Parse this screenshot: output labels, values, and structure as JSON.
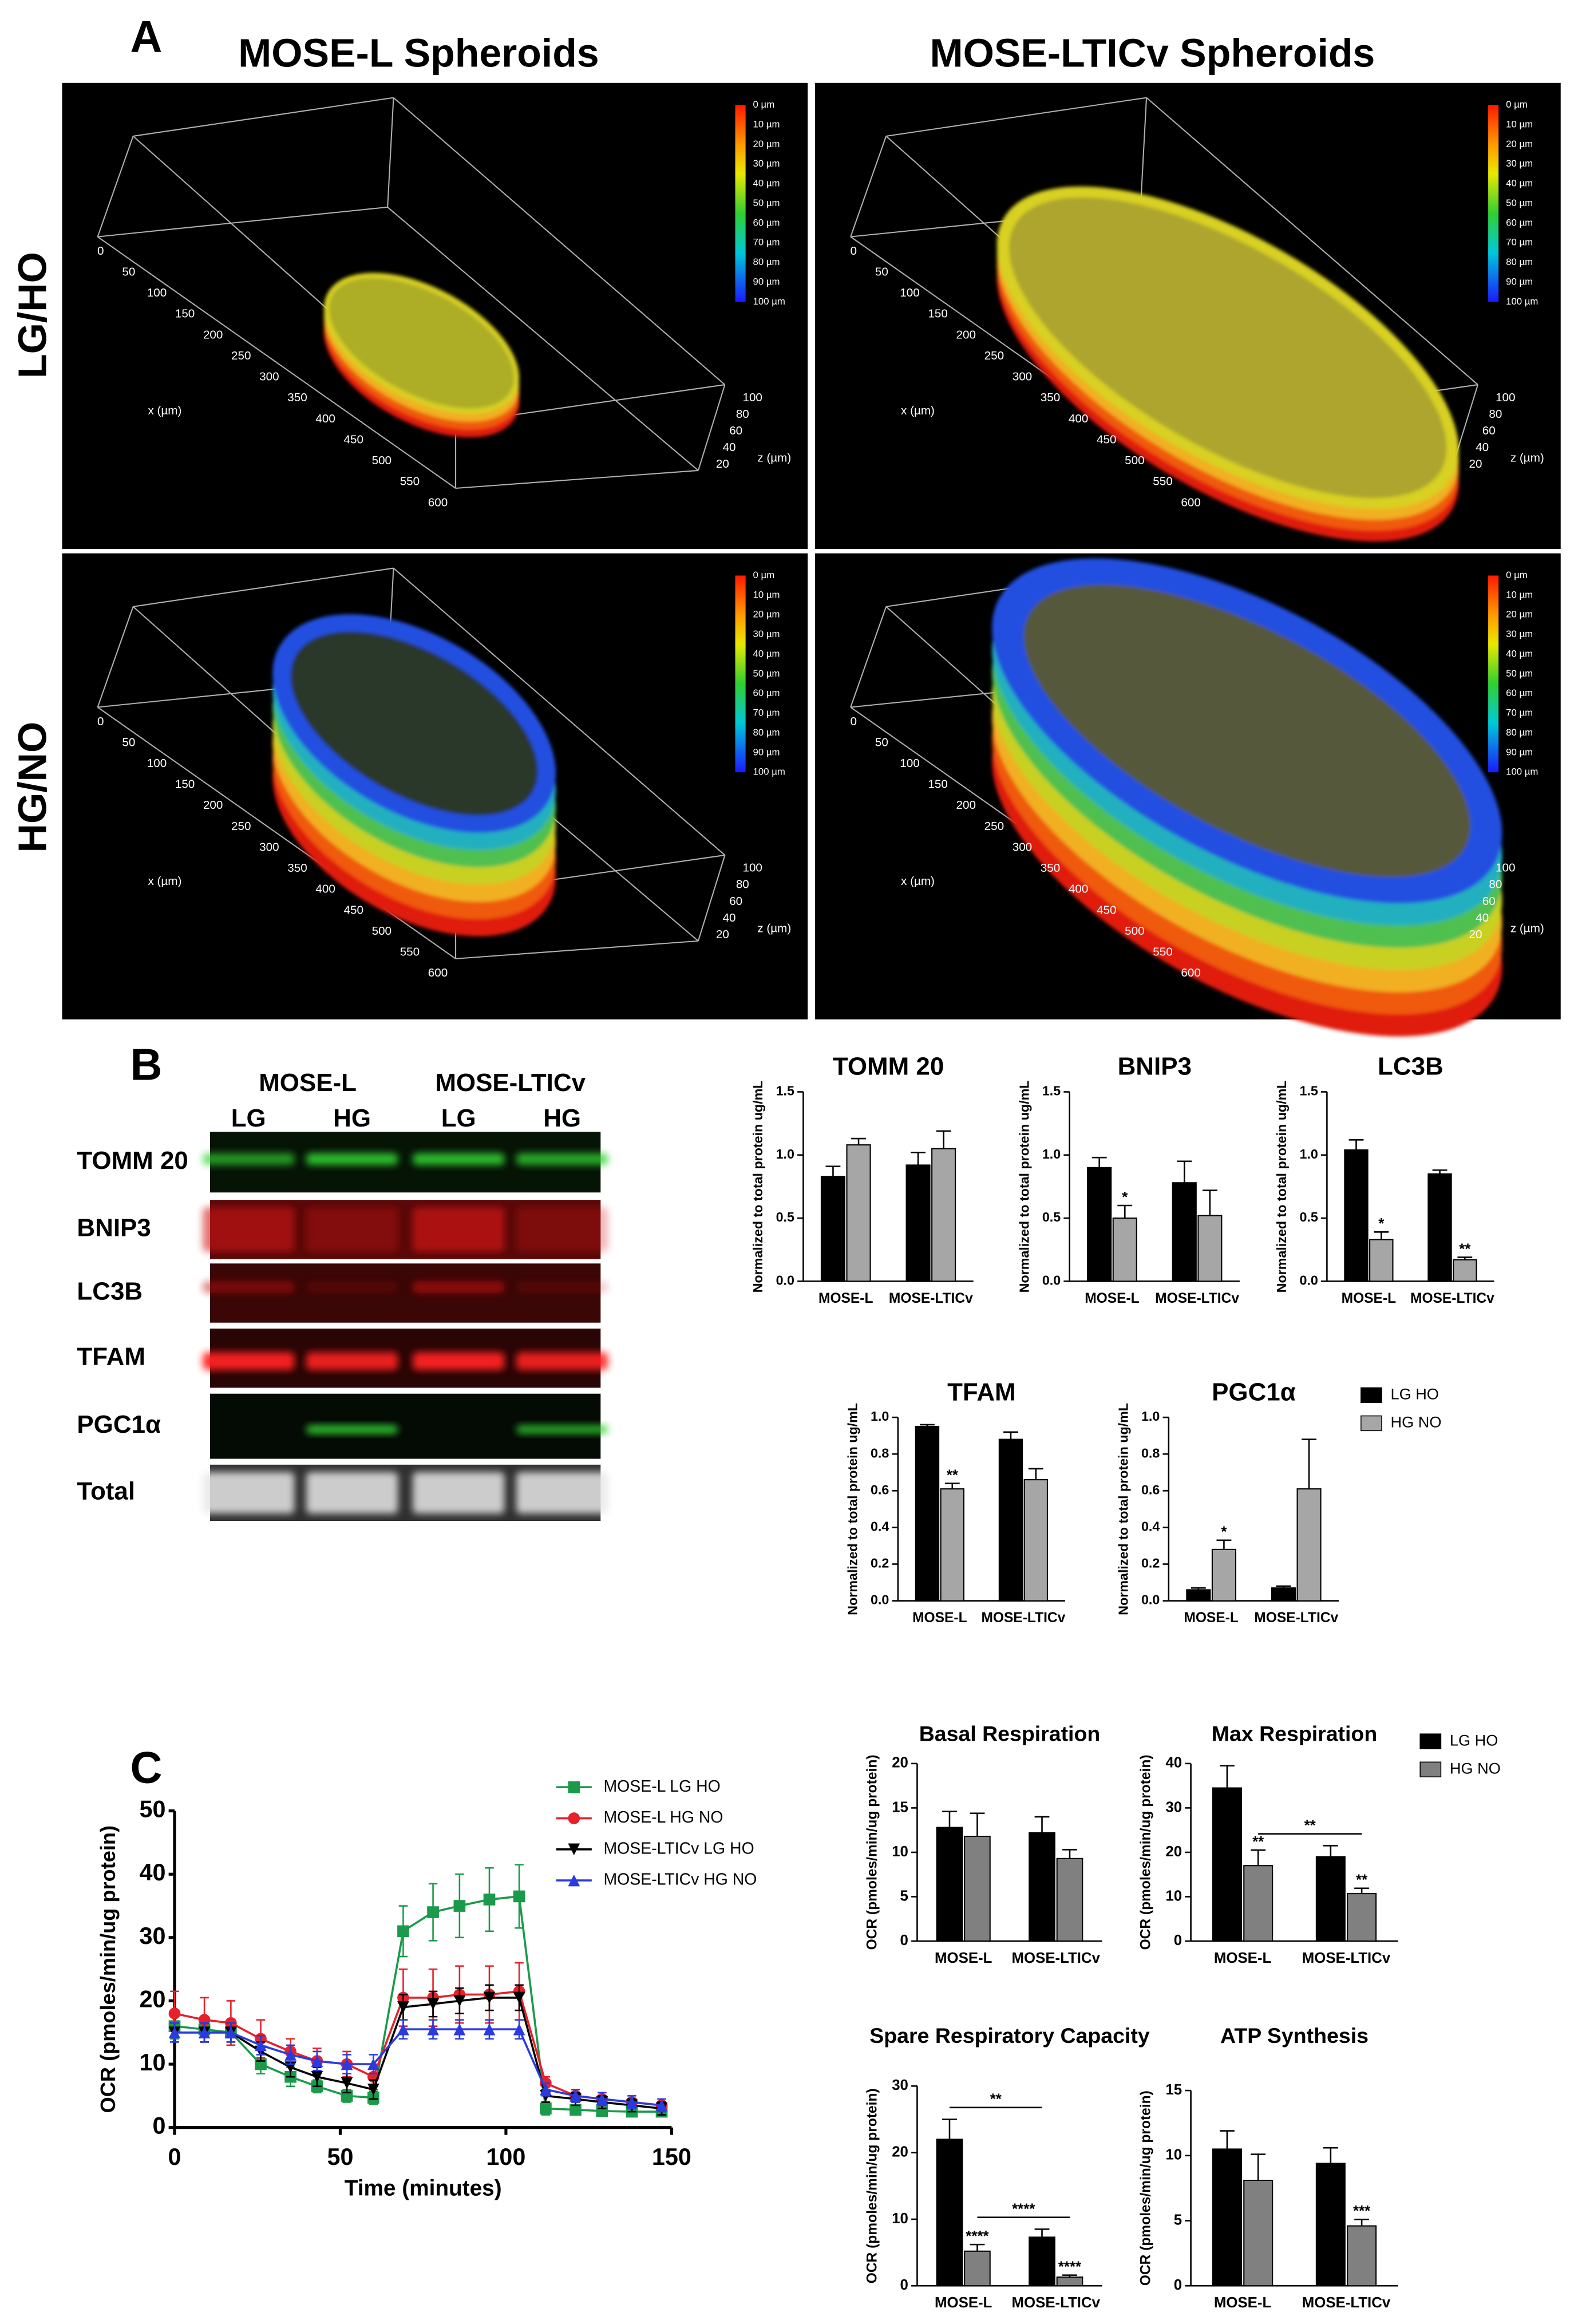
{
  "panel_labels": [
    "A",
    "B",
    "C"
  ],
  "spheroids": {
    "columns": [
      "MOSE-L Spheroids",
      "MOSE-LTICv Spheroids"
    ],
    "rows": [
      "LG/HO",
      "HG/NO"
    ],
    "depth_scale": [
      "0 µm",
      "10 µm",
      "20 µm",
      "30 µm",
      "40 µm",
      "50 µm",
      "60 µm",
      "70 µm",
      "80 µm",
      "90 µm",
      "100 µm"
    ],
    "x_label": "x (µm)",
    "x_ticks": [
      0,
      50,
      100,
      150,
      200,
      250,
      300,
      350,
      400,
      450,
      500,
      550,
      600
    ],
    "z_label": "z (µm)",
    "z_ticks": [
      100,
      80,
      60,
      40,
      20
    ]
  },
  "blot": {
    "groups": [
      "MOSE-L",
      "MOSE-LTICv"
    ],
    "lanes": [
      "LG",
      "HG",
      "LG",
      "HG"
    ],
    "proteins": [
      "TOMM 20",
      "BNIP3",
      "LC3B",
      "TFAM",
      "PGC1α",
      "Total"
    ]
  },
  "chart_data": [
    {
      "type": "bar",
      "title": "TOMM 20",
      "ylabel": "Normalized to total protein ug/mL",
      "categories": [
        "MOSE-L",
        "MOSE-LTICv"
      ],
      "ylim": [
        0,
        1.5
      ],
      "yticks": [
        {
          "value": 0,
          "label": "0.0"
        },
        {
          "value": 0.5,
          "label": "0.5"
        },
        {
          "value": 1,
          "label": "1.0"
        },
        {
          "value": 1.5,
          "label": "1.5"
        }
      ],
      "series": [
        {
          "color": "#000000",
          "values": [
            0.83,
            0.92
          ],
          "errors": [
            0.08,
            0.1
          ]
        },
        {
          "color": "#a6a6a6",
          "values": [
            1.08,
            1.05
          ],
          "errors": [
            0.05,
            0.14
          ]
        }
      ]
    },
    {
      "type": "bar",
      "title": "BNIP3",
      "ylabel": "Normalized to total protein ug/mL",
      "categories": [
        "MOSE-L",
        "MOSE-LTICv"
      ],
      "ylim": [
        0,
        1.5
      ],
      "yticks": [
        {
          "value": 0,
          "label": "0.0"
        },
        {
          "value": 0.5,
          "label": "0.5"
        },
        {
          "value": 1,
          "label": "1.0"
        },
        {
          "value": 1.5,
          "label": "1.5"
        }
      ],
      "series": [
        {
          "color": "#000000",
          "values": [
            0.9,
            0.78
          ],
          "errors": [
            0.08,
            0.17
          ]
        },
        {
          "color": "#a6a6a6",
          "values": [
            0.5,
            0.52
          ],
          "errors": [
            0.1,
            0.2
          ],
          "stars": [
            "*",
            null
          ]
        }
      ]
    },
    {
      "type": "bar",
      "title": "LC3B",
      "ylabel": "Normalized to total protein ug/mL",
      "categories": [
        "MOSE-L",
        "MOSE-LTICv"
      ],
      "ylim": [
        0,
        1.5
      ],
      "yticks": [
        {
          "value": 0,
          "label": "0.0"
        },
        {
          "value": 0.5,
          "label": "0.5"
        },
        {
          "value": 1,
          "label": "1.0"
        },
        {
          "value": 1.5,
          "label": "1.5"
        }
      ],
      "series": [
        {
          "color": "#000000",
          "values": [
            1.04,
            0.85
          ],
          "errors": [
            0.08,
            0.03
          ]
        },
        {
          "color": "#a6a6a6",
          "values": [
            0.33,
            0.17
          ],
          "errors": [
            0.06,
            0.02
          ],
          "stars": [
            "*",
            "**"
          ]
        }
      ]
    },
    {
      "type": "bar",
      "title": "TFAM",
      "ylabel": "Normalized to total protein ug/mL",
      "categories": [
        "MOSE-L",
        "MOSE-LTICv"
      ],
      "ylim": [
        0,
        1
      ],
      "yticks": [
        {
          "value": 0,
          "label": "0.0"
        },
        {
          "value": 0.2,
          "label": "0.2"
        },
        {
          "value": 0.4,
          "label": "0.4"
        },
        {
          "value": 0.6,
          "label": "0.6"
        },
        {
          "value": 0.8,
          "label": "0.8"
        },
        {
          "value": 1,
          "label": "1.0"
        }
      ],
      "series": [
        {
          "color": "#000000",
          "values": [
            0.95,
            0.88
          ],
          "errors": [
            0.01,
            0.04
          ]
        },
        {
          "color": "#a6a6a6",
          "values": [
            0.61,
            0.66
          ],
          "errors": [
            0.03,
            0.06
          ],
          "stars": [
            "**",
            null
          ]
        }
      ]
    },
    {
      "type": "bar",
      "title": "PGC1α",
      "ylabel": "Normalized to total protein ug/mL",
      "categories": [
        "MOSE-L",
        "MOSE-LTICv"
      ],
      "ylim": [
        0,
        1
      ],
      "yticks": [
        {
          "value": 0,
          "label": "0.0"
        },
        {
          "value": 0.2,
          "label": "0.2"
        },
        {
          "value": 0.4,
          "label": "0.4"
        },
        {
          "value": 0.6,
          "label": "0.6"
        },
        {
          "value": 0.8,
          "label": "0.8"
        },
        {
          "value": 1,
          "label": "1.0"
        }
      ],
      "legend": "right",
      "series": [
        {
          "name": "LG HO",
          "color": "#000000",
          "values": [
            0.06,
            0.07
          ],
          "errors": [
            0.01,
            0.01
          ]
        },
        {
          "name": "HG NO",
          "color": "#a6a6a6",
          "values": [
            0.28,
            0.61
          ],
          "errors": [
            0.05,
            0.27
          ],
          "stars": [
            "*",
            null
          ]
        }
      ]
    },
    {
      "type": "line",
      "xlabel": "Time (minutes)",
      "ylabel": "OCR (pmoles/min/ug protein)",
      "x": [
        0,
        9,
        17,
        26,
        35,
        43,
        52,
        60,
        69,
        78,
        86,
        95,
        104,
        112,
        121,
        129,
        138,
        147
      ],
      "xlim": [
        0,
        150
      ],
      "xticks": [
        0,
        50,
        100,
        150
      ],
      "ylim": [
        0,
        50
      ],
      "yticks": [
        0,
        10,
        20,
        30,
        40,
        50
      ],
      "legend": "top",
      "series": [
        {
          "name": "MOSE-L LG HO",
          "color": "#1a9a4a",
          "marker": "square",
          "values": [
            16,
            15.5,
            15,
            10,
            8,
            6.5,
            5,
            4.7,
            31,
            34,
            35,
            36,
            36.5,
            3,
            2.8,
            2.6,
            2.5,
            2.5
          ],
          "errors": [
            2,
            2,
            2,
            1.5,
            1.5,
            1,
            1,
            1,
            4,
            4.5,
            5,
            5,
            5,
            1,
            0.5,
            0.5,
            0.5,
            0.5
          ]
        },
        {
          "name": "MOSE-L HG NO",
          "color": "#e8202a",
          "marker": "circle",
          "values": [
            18,
            17,
            16.5,
            14,
            12,
            10.5,
            10,
            8,
            20.5,
            20.5,
            21,
            21,
            21.5,
            7,
            5,
            4.5,
            4,
            3.5
          ],
          "errors": [
            3.5,
            3.5,
            3.5,
            3,
            2,
            2,
            2,
            2,
            4.5,
            4.5,
            4.5,
            4.5,
            4.5,
            1,
            1,
            1,
            0.5,
            0.5
          ]
        },
        {
          "name": "MOSE-LTICv LG HO",
          "color": "#000000",
          "marker": "triangle-down",
          "values": [
            15,
            15,
            15,
            12,
            9.5,
            8,
            7,
            6,
            19,
            19.5,
            20,
            20.5,
            20.5,
            5,
            4.5,
            4,
            3.5,
            3
          ],
          "errors": [
            1.5,
            1.5,
            1.5,
            1.5,
            1.5,
            1.5,
            1.5,
            1.5,
            2,
            2,
            2,
            2,
            2,
            1,
            1,
            1,
            1,
            1
          ]
        },
        {
          "name": "MOSE-LTICv HG NO",
          "color": "#2a3ae0",
          "marker": "triangle-up",
          "values": [
            15,
            15,
            15,
            13,
            11.5,
            10.5,
            10,
            10,
            15.5,
            15.5,
            15.5,
            15.5,
            15.5,
            6,
            5,
            4.5,
            4,
            3.5
          ],
          "errors": [
            1.5,
            1.5,
            1.5,
            1.5,
            1.5,
            1.5,
            1.5,
            1.5,
            1.5,
            1.5,
            1.5,
            1.5,
            1.5,
            1,
            1,
            1,
            1,
            1
          ]
        }
      ]
    },
    {
      "type": "bar",
      "title": "Basal Respiration",
      "ylabel": "OCR (pmoles/min/ug protein)",
      "categories": [
        "MOSE-L",
        "MOSE-LTICv"
      ],
      "ylim": [
        0,
        20
      ],
      "yticks": [
        0,
        5,
        10,
        15,
        20
      ],
      "series": [
        {
          "color": "#000000",
          "values": [
            12.8,
            12.2
          ],
          "errors": [
            1.8,
            1.8
          ]
        },
        {
          "color": "#808080",
          "values": [
            11.8,
            9.3
          ],
          "errors": [
            2.6,
            1.0
          ]
        }
      ]
    },
    {
      "type": "bar",
      "title": "Max Respiration",
      "ylabel": "OCR (pmoles/min/ug protein)",
      "categories": [
        "MOSE-L",
        "MOSE-LTICv"
      ],
      "ylim": [
        0,
        40
      ],
      "yticks": [
        0,
        10,
        20,
        30,
        40
      ],
      "legend": "right",
      "series": [
        {
          "name": "LG HO",
          "color": "#000000",
          "values": [
            34.5,
            19
          ],
          "errors": [
            5,
            2.5
          ]
        },
        {
          "name": "HG NO",
          "color": "#808080",
          "values": [
            17,
            10.7
          ],
          "errors": [
            3.5,
            1.2
          ],
          "stars": [
            "**",
            "**"
          ],
          "bracket": "**"
        }
      ]
    },
    {
      "type": "bar",
      "title": "Spare Respiratory Capacity",
      "ylabel": "OCR (pmoles/min/ug protein)",
      "categories": [
        "MOSE-L",
        "MOSE-LTICv"
      ],
      "ylim": [
        0,
        30
      ],
      "yticks": [
        0,
        10,
        20,
        30
      ],
      "series": [
        {
          "color": "#000000",
          "values": [
            22,
            7.3
          ],
          "errors": [
            3,
            1.2
          ],
          "bracket": "**"
        },
        {
          "color": "#808080",
          "values": [
            5.2,
            1.3
          ],
          "errors": [
            1,
            0.3
          ],
          "stars": [
            "****",
            "****"
          ],
          "bracket": "****"
        }
      ]
    },
    {
      "type": "bar",
      "title": "ATP Synthesis",
      "ylabel": "OCR (pmoles/min/ug protein)",
      "categories": [
        "MOSE-L",
        "MOSE-LTICv"
      ],
      "ylim": [
        0,
        15
      ],
      "yticks": [
        0,
        5,
        10,
        15
      ],
      "series": [
        {
          "color": "#000000",
          "values": [
            10.5,
            9.4
          ],
          "errors": [
            1.4,
            1.2
          ]
        },
        {
          "color": "#808080",
          "values": [
            8.1,
            4.6
          ],
          "errors": [
            2,
            0.5
          ],
          "stars": [
            null,
            "***"
          ]
        }
      ]
    }
  ]
}
